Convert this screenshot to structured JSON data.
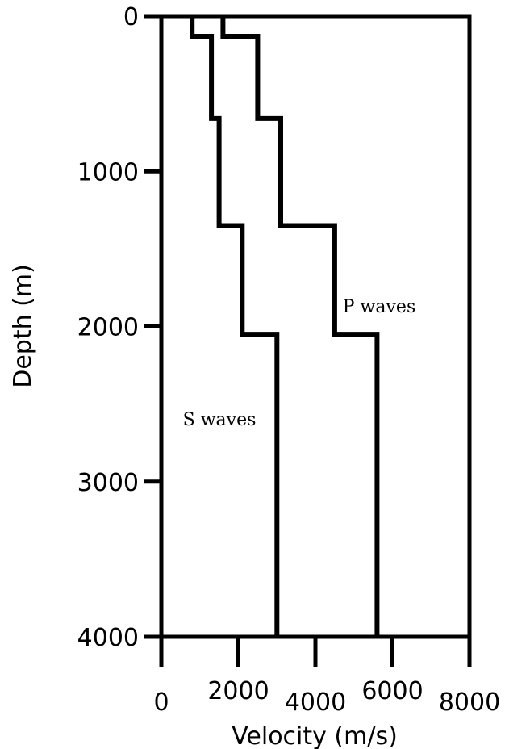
{
  "chart_data": {
    "type": "line",
    "title": "",
    "xlabel": "Velocity (m/s)",
    "ylabel": "Depth (m)",
    "xlim": [
      0,
      8000
    ],
    "ylim": [
      0,
      4000
    ],
    "y_inverted": true,
    "x_ticks": [
      "0",
      "2000",
      "4000",
      "6000",
      "8000"
    ],
    "y_ticks": [
      "0",
      "1000",
      "2000",
      "3000",
      "4000"
    ],
    "grid": false,
    "series": [
      {
        "name": "S waves",
        "color": "#000000",
        "style": "step",
        "velocity": [
          800,
          1300,
          1500,
          2100,
          3000
        ],
        "depth_top": [
          0,
          130,
          660,
          1350,
          2050
        ],
        "depth_bottom": [
          130,
          660,
          1350,
          2050,
          4000
        ]
      },
      {
        "name": "P waves",
        "color": "#000000",
        "style": "step",
        "velocity": [
          1600,
          2500,
          3100,
          4500,
          5600
        ],
        "depth_top": [
          0,
          130,
          660,
          1350,
          2050
        ],
        "depth_bottom": [
          130,
          660,
          1350,
          2050,
          4000
        ]
      }
    ]
  }
}
